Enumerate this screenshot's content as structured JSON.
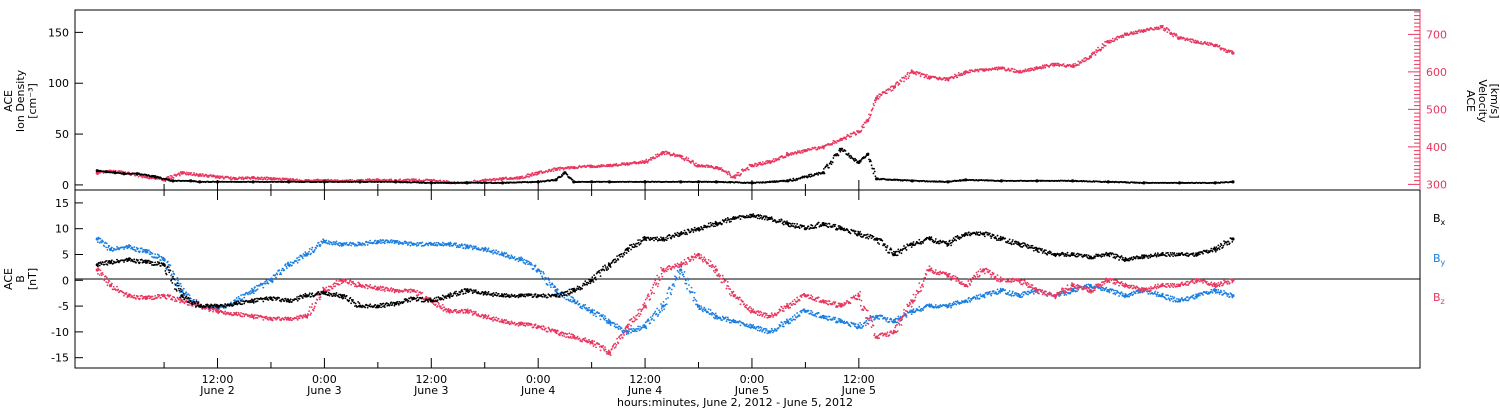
{
  "chart_data": [
    {
      "type": "scatter",
      "panel": "plasma",
      "ylabel_left": [
        "ACE",
        "Ion Density",
        "[cm⁻³]"
      ],
      "ylabel_right": [
        "ACE",
        "Velocity",
        "[km/s]"
      ],
      "ylim_left": [
        -5,
        172
      ],
      "yticks_left": [
        0,
        50,
        100,
        150
      ],
      "ylim_right": [
        285,
        765
      ],
      "yticks_right": [
        300,
        400,
        500,
        600,
        700
      ],
      "series": [
        {
          "name": "Ion Density",
          "color": "#000000",
          "axis": "left",
          "x": [
            -1.5,
            -0.5,
            0.5,
            1.5,
            3,
            5,
            7,
            9,
            10,
            12,
            16,
            20,
            24,
            28,
            32,
            36,
            40,
            44,
            48,
            50,
            51,
            52,
            54,
            56,
            60,
            64,
            66,
            68,
            72,
            76,
            80,
            82,
            84,
            85,
            86,
            90,
            94,
            96,
            100,
            104,
            108,
            112,
            116,
            120,
            124,
            126
          ],
          "y": [
            14,
            13,
            12,
            11,
            11,
            8,
            4,
            4,
            3,
            3,
            3,
            3,
            3,
            3,
            3,
            2,
            2,
            2,
            3,
            5,
            12,
            3,
            3,
            3,
            3,
            3,
            3,
            3,
            2,
            4,
            12,
            35,
            22,
            30,
            6,
            4,
            3,
            5,
            4,
            4,
            4,
            3,
            2,
            2,
            2,
            3
          ]
        },
        {
          "name": "Velocity",
          "color": "#e8375f",
          "axis": "right",
          "x": [
            -1.5,
            0,
            2,
            4,
            6,
            8,
            10,
            12,
            14,
            16,
            18,
            20,
            22,
            24,
            26,
            28,
            30,
            32,
            34,
            36,
            38,
            40,
            42,
            44,
            46,
            48,
            50,
            52,
            54,
            56,
            58,
            60,
            62,
            64,
            66,
            68,
            70,
            72,
            74,
            76,
            78,
            80,
            82,
            84,
            85,
            86,
            88,
            90,
            92,
            94,
            96,
            98,
            100,
            102,
            104,
            106,
            108,
            110,
            112,
            114,
            116,
            118,
            120,
            122,
            124,
            126
          ],
          "y": [
            330,
            335,
            330,
            320,
            312,
            330,
            325,
            320,
            315,
            318,
            315,
            312,
            310,
            310,
            308,
            310,
            312,
            310,
            312,
            310,
            305,
            305,
            310,
            315,
            318,
            330,
            340,
            345,
            348,
            350,
            355,
            360,
            385,
            375,
            350,
            345,
            320,
            350,
            360,
            380,
            390,
            400,
            420,
            440,
            470,
            530,
            560,
            600,
            585,
            580,
            600,
            605,
            610,
            600,
            610,
            620,
            615,
            640,
            680,
            700,
            710,
            720,
            690,
            680,
            670,
            650
          ]
        }
      ]
    },
    {
      "type": "scatter",
      "panel": "magnetic",
      "ylabel": [
        "ACE",
        "B",
        "[nT]"
      ],
      "ylim": [
        -17,
        17.5
      ],
      "yticks": [
        -15,
        -10,
        -5,
        0,
        5,
        10,
        15
      ],
      "series": [
        {
          "name": "B",
          "subscript": "x",
          "color": "#000000",
          "x": [
            -1.5,
            0,
            2,
            4,
            6,
            8,
            10,
            12,
            14,
            16,
            18,
            20,
            22,
            24,
            26,
            28,
            30,
            32,
            34,
            36,
            38,
            40,
            42,
            44,
            46,
            48,
            50,
            52,
            54,
            56,
            58,
            60,
            62,
            64,
            66,
            68,
            70,
            72,
            74,
            76,
            78,
            80,
            82,
            84,
            86,
            88,
            90,
            92,
            94,
            96,
            98,
            100,
            102,
            104,
            106,
            108,
            110,
            112,
            114,
            116,
            118,
            120,
            122,
            124,
            126
          ],
          "y": [
            3,
            3.5,
            4,
            3.5,
            3,
            -3,
            -5,
            -5,
            -4.5,
            -4,
            -3.5,
            -4,
            -3,
            -2.5,
            -3,
            -5,
            -5,
            -4.5,
            -3.5,
            -4,
            -3,
            -2,
            -2.5,
            -3,
            -3,
            -3,
            -3,
            -2,
            0,
            3,
            6,
            8,
            8,
            9,
            10,
            11,
            12,
            12.5,
            12,
            11,
            10,
            11,
            10,
            9,
            8,
            5,
            7,
            8,
            7,
            9,
            9,
            8,
            7,
            6,
            5,
            5,
            4.5,
            5,
            4,
            4.5,
            5,
            5,
            5,
            6,
            8
          ]
        },
        {
          "name": "B",
          "subscript": "y",
          "color": "#1a7fe0",
          "x": [
            -1.5,
            0,
            2,
            4,
            6,
            8,
            10,
            12,
            14,
            16,
            18,
            20,
            22,
            24,
            26,
            28,
            30,
            32,
            34,
            36,
            38,
            40,
            42,
            44,
            46,
            48,
            50,
            52,
            54,
            56,
            58,
            60,
            62,
            64,
            66,
            68,
            70,
            72,
            74,
            76,
            78,
            80,
            82,
            84,
            86,
            88,
            90,
            92,
            94,
            96,
            98,
            100,
            102,
            104,
            106,
            108,
            110,
            112,
            114,
            116,
            118,
            120,
            122,
            124,
            126
          ],
          "y": [
            8,
            6,
            6.5,
            5.5,
            4,
            -2,
            -5,
            -5.5,
            -4,
            -2,
            0,
            3,
            5,
            7.5,
            7,
            7,
            7.5,
            7.5,
            7,
            7,
            7,
            6.5,
            6,
            5,
            4,
            2,
            -2,
            -4,
            -6,
            -8,
            -10,
            -9,
            -5,
            2,
            -5,
            -7,
            -8,
            -9,
            -10,
            -8,
            -6,
            -7,
            -8,
            -9,
            -7,
            -8,
            -6,
            -5,
            -5,
            -4,
            -3,
            -2,
            -3,
            -2,
            -3,
            -2,
            -1,
            -2,
            -3,
            -2,
            -3,
            -4,
            -3,
            -2,
            -3
          ]
        },
        {
          "name": "B",
          "subscript": "z",
          "color": "#e8375f",
          "x": [
            -1.5,
            0,
            2,
            4,
            6,
            8,
            10,
            12,
            14,
            16,
            18,
            20,
            22,
            24,
            26,
            28,
            30,
            32,
            34,
            36,
            38,
            40,
            42,
            44,
            46,
            48,
            50,
            52,
            54,
            56,
            58,
            60,
            62,
            64,
            66,
            68,
            70,
            72,
            74,
            76,
            78,
            80,
            82,
            84,
            86,
            88,
            90,
            92,
            94,
            96,
            98,
            100,
            102,
            104,
            106,
            108,
            110,
            112,
            114,
            116,
            118,
            120,
            122,
            124,
            126
          ],
          "y": [
            2,
            -1,
            -3,
            -3.5,
            -3,
            -4,
            -5,
            -6,
            -6.5,
            -7,
            -7.5,
            -7.5,
            -7,
            -2,
            0,
            -1,
            -1.5,
            -2,
            -2,
            -4,
            -6,
            -6,
            -7,
            -8,
            -8.5,
            -9,
            -10,
            -11,
            -12,
            -14,
            -9,
            -5,
            2,
            3,
            5,
            2,
            -3,
            -6,
            -7,
            -5,
            -3,
            -4,
            -5,
            -3,
            -11,
            -10,
            -4,
            2,
            1,
            -1,
            2,
            0,
            0,
            -2,
            -3,
            -1,
            -2,
            0,
            -1,
            -2,
            -1,
            -1,
            0,
            -1,
            0
          ]
        }
      ]
    }
  ],
  "x_axis": {
    "xlim": [
      -4,
      147
    ],
    "ticks": [
      {
        "hours": 6,
        "label": "",
        "sub": ""
      },
      {
        "hours": 12,
        "label": "12:00",
        "sub": "June 2"
      },
      {
        "hours": 18,
        "label": "",
        "sub": ""
      },
      {
        "hours": 24,
        "label": "0:00",
        "sub": "June 3"
      },
      {
        "hours": 30,
        "label": "",
        "sub": ""
      },
      {
        "hours": 36,
        "label": "12:00",
        "sub": "June 3"
      },
      {
        "hours": 42,
        "label": "",
        "sub": ""
      },
      {
        "hours": 48,
        "label": "0:00",
        "sub": "June 4"
      },
      {
        "hours": 54,
        "label": "",
        "sub": ""
      },
      {
        "hours": 60,
        "label": "12:00",
        "sub": "June 4"
      },
      {
        "hours": 66,
        "label": "",
        "sub": ""
      },
      {
        "hours": 72,
        "label": "0:00",
        "sub": "June 5"
      },
      {
        "hours": 78,
        "label": "",
        "sub": ""
      },
      {
        "hours": 84,
        "label": "12:00",
        "sub": "June 5"
      }
    ],
    "xlabel": "hours:minutes, June  2, 2012 - June  5, 2012"
  },
  "colors": {
    "black": "#000000",
    "blue": "#1a7fe0",
    "red": "#e8375f"
  }
}
